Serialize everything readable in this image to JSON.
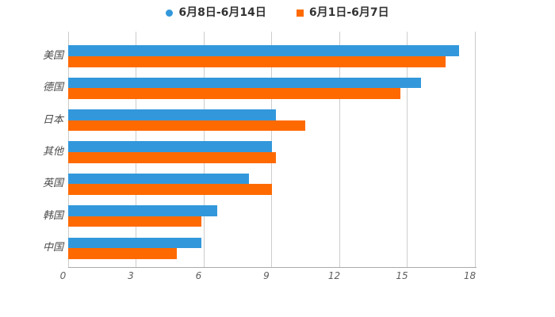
{
  "legend": {
    "items": [
      {
        "label": "6月8日-6月14日",
        "marker": "circle",
        "color": "#3398DB"
      },
      {
        "label": "6月1日-6月7日",
        "marker": "square",
        "color": "#FF6A00"
      }
    ]
  },
  "chart_data": {
    "type": "bar",
    "orientation": "horizontal",
    "title": "",
    "xlabel": "",
    "ylabel": "",
    "categories": [
      "美国",
      "德国",
      "日本",
      "其他",
      "英国",
      "韩国",
      "中国"
    ],
    "series": [
      {
        "name": "6月8日-6月14日",
        "color": "#3398DB",
        "marker": "circle",
        "values": [
          17.3,
          15.6,
          9.2,
          9.0,
          8.0,
          6.6,
          5.9
        ]
      },
      {
        "name": "6月1日-6月7日",
        "color": "#FF6A00",
        "marker": "square",
        "values": [
          16.7,
          14.7,
          10.5,
          9.2,
          9.0,
          5.9,
          4.8
        ]
      }
    ],
    "xlim": [
      0,
      18
    ],
    "xticks": [
      0,
      3,
      6,
      9,
      12,
      15,
      18
    ],
    "grid": true,
    "legend_position": "top"
  },
  "colors": {
    "gridline": "#cccccc",
    "axis": "#aaaaaa",
    "category_label": "#4a4a4a",
    "tick_label": "#5f5f5f",
    "legend_text": "#333333",
    "background": "#ffffff"
  }
}
